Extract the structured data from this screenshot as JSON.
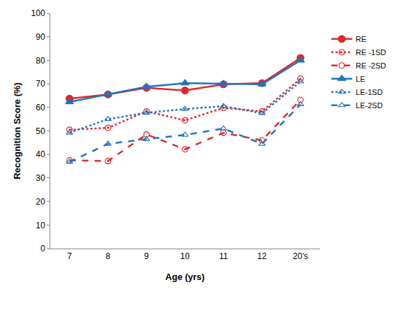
{
  "chart_data": {
    "type": "line",
    "x_label": "Age (yrs)",
    "y_label": "Recognition Score (%)",
    "categories": [
      "7",
      "8",
      "9",
      "10",
      "11",
      "12",
      "20's"
    ],
    "series": [
      {
        "name": "RE",
        "color": "#e3262a",
        "marker": "circle",
        "line_style": "solid",
        "values": [
          63.7,
          65.5,
          68.3,
          67.2,
          69.8,
          70.3,
          81
        ]
      },
      {
        "name": "RE -1SD",
        "color": "#e3262a",
        "marker": "circle-open-dot",
        "line_style": "dot",
        "values": [
          50.5,
          51.3,
          58.3,
          54.5,
          59.8,
          58.3,
          72.2
        ]
      },
      {
        "name": "RE -2SD",
        "color": "#e3262a",
        "marker": "circle-open",
        "line_style": "dash",
        "values": [
          37.5,
          37.2,
          48.5,
          42.2,
          49.2,
          46,
          63.2
        ]
      },
      {
        "name": "LE",
        "color": "#1c75bc",
        "marker": "triangle-up",
        "line_style": "solid",
        "values": [
          62.3,
          65.5,
          68.8,
          70.3,
          70,
          69.8,
          80
        ]
      },
      {
        "name": "LE-1SD",
        "color": "#1c75bc",
        "marker": "triangle-up-open",
        "line_style": "dot",
        "values": [
          49.2,
          55,
          57.7,
          59.3,
          60.5,
          57.5,
          71
        ]
      },
      {
        "name": "LE-2SD",
        "color": "#1c75bc",
        "marker": "triangle-up-open",
        "line_style": "dash",
        "values": [
          36.8,
          44.5,
          46.5,
          48.3,
          51,
          44.5,
          61.3
        ]
      }
    ],
    "ylim": [
      0,
      100
    ],
    "yticks": [
      0,
      10,
      20,
      30,
      40,
      50,
      60,
      70,
      80,
      90,
      100
    ],
    "grid": false,
    "legend": "right"
  }
}
